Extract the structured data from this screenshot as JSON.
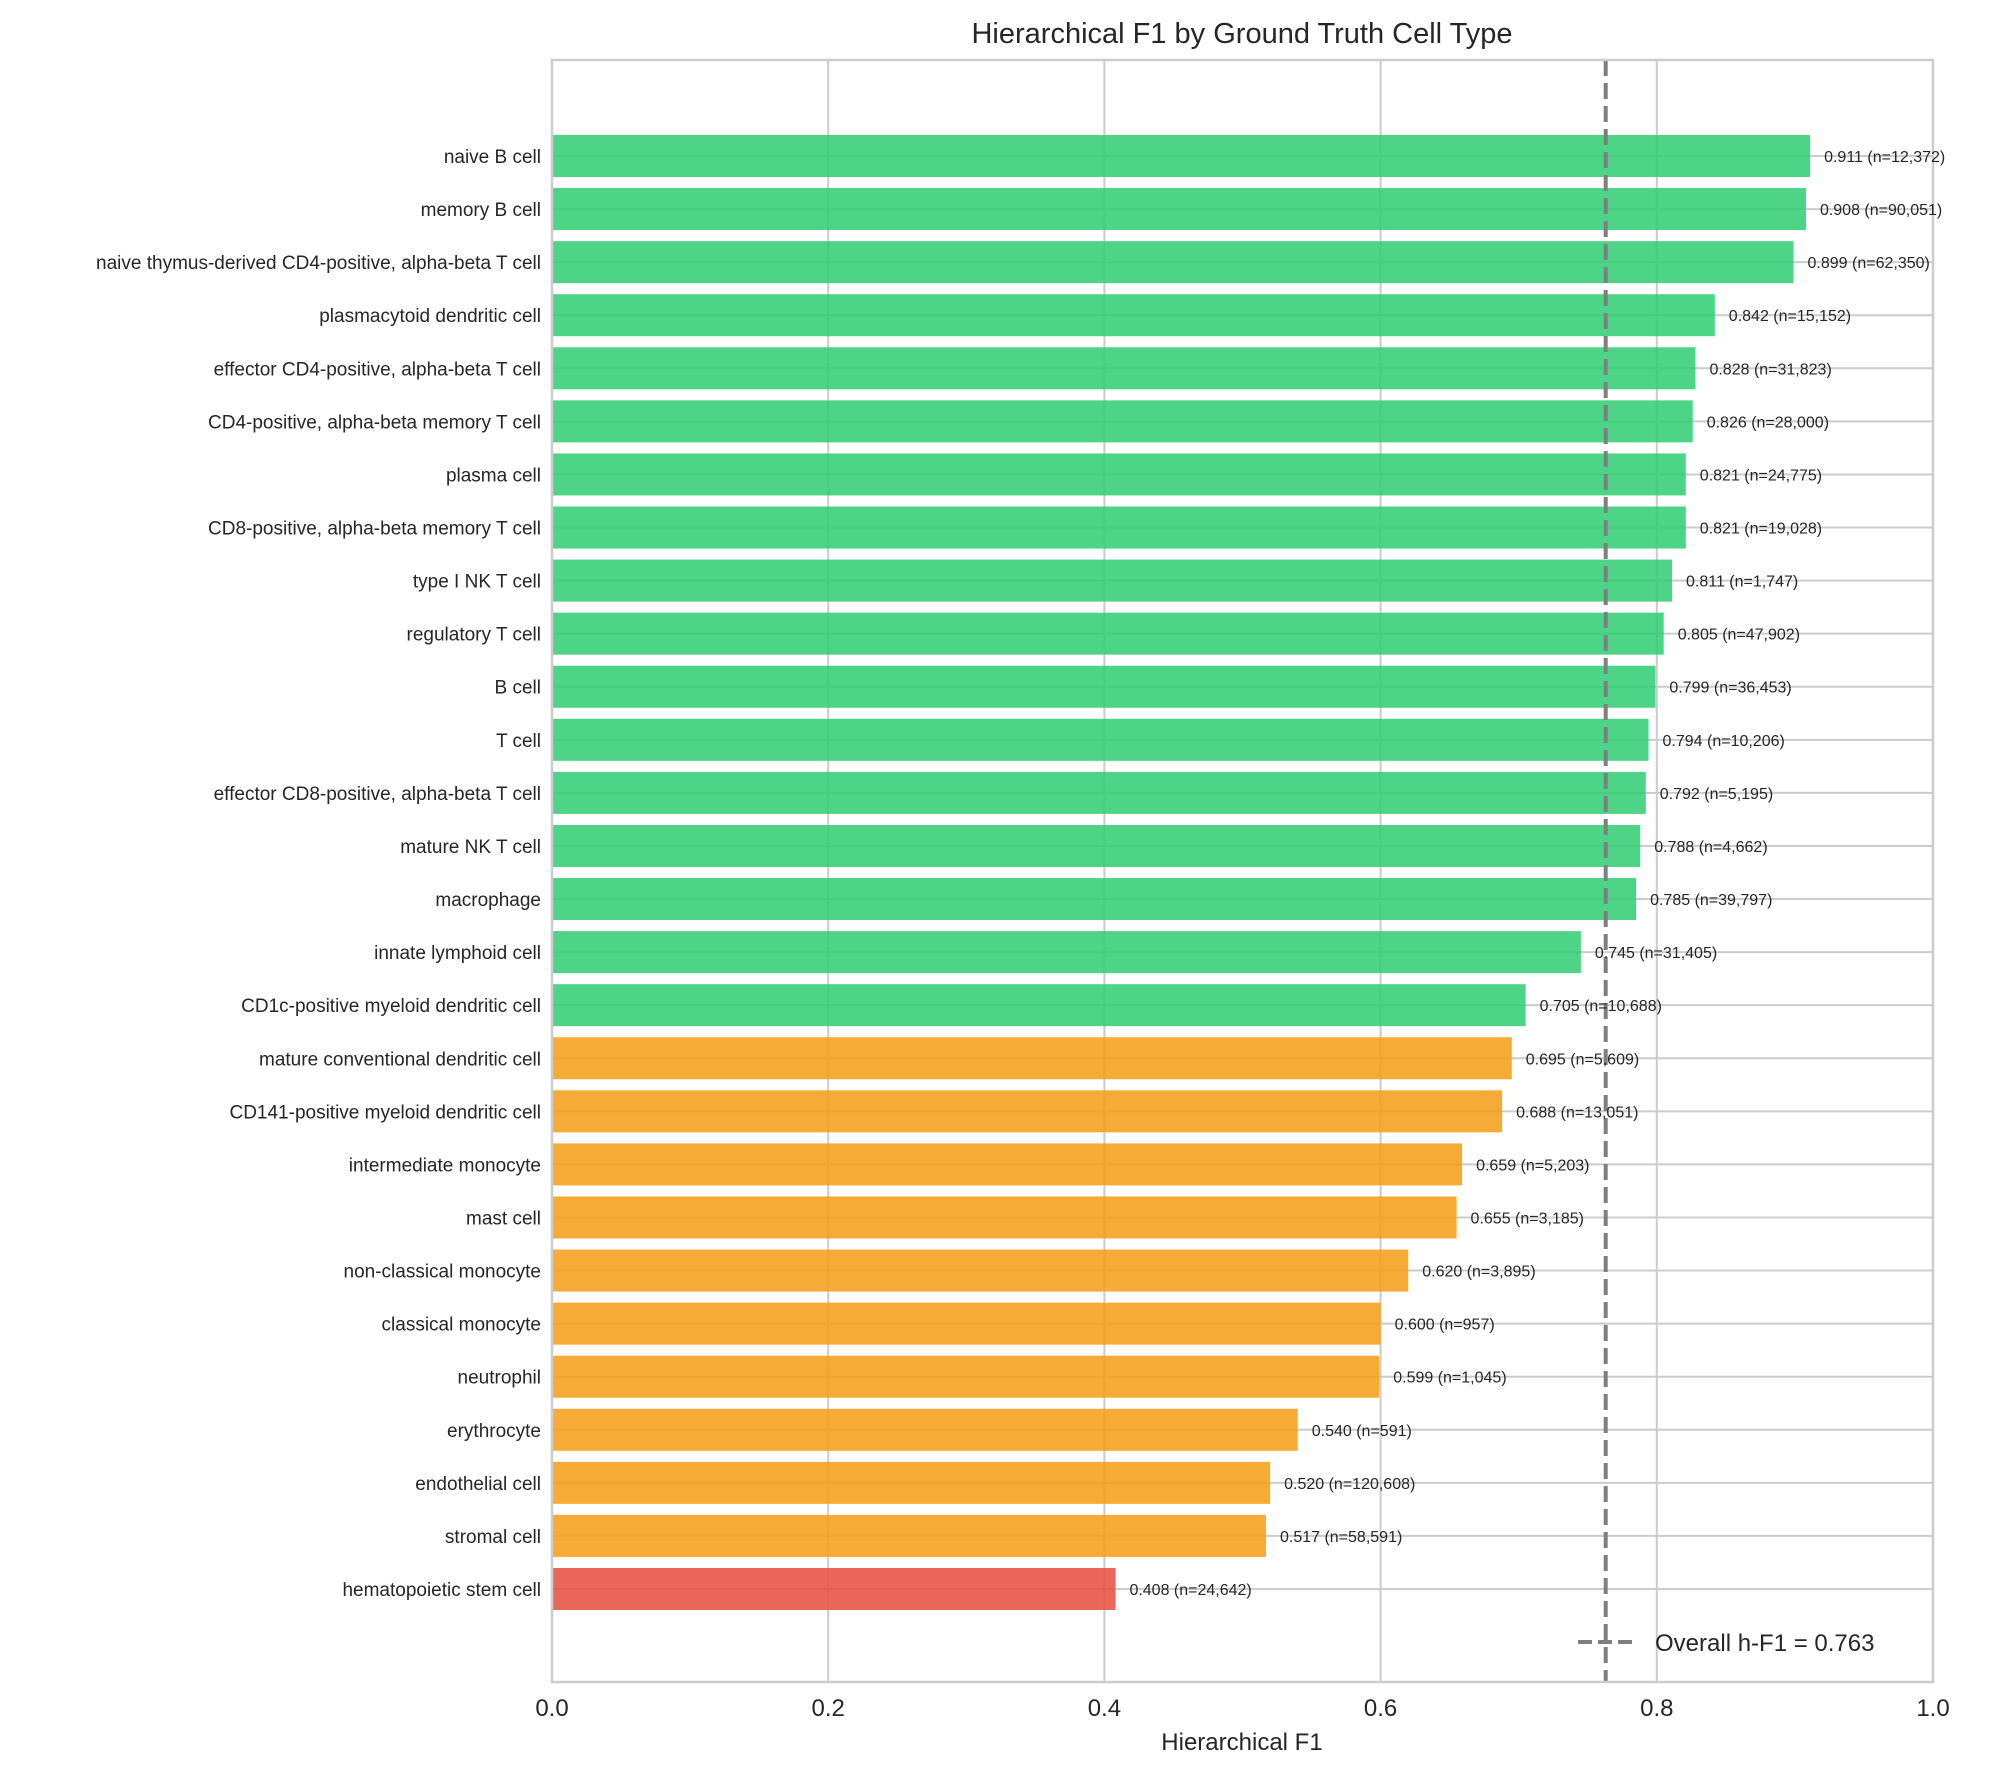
{
  "chart_data": {
    "type": "bar",
    "orientation": "horizontal",
    "title": "Hierarchical F1 by Ground Truth Cell Type",
    "xlabel": "Hierarchical F1",
    "ylabel": "",
    "xlim": [
      0.0,
      1.0
    ],
    "xticks": [
      "0.0",
      "0.2",
      "0.4",
      "0.6",
      "0.8",
      "1.0"
    ],
    "xtick_values": [
      0.0,
      0.2,
      0.4,
      0.6,
      0.8,
      1.0
    ],
    "grid": true,
    "categories": [
      "naive B cell",
      "memory B cell",
      "naive thymus-derived CD4-positive, alpha-beta T cell",
      "plasmacytoid dendritic cell",
      "effector CD4-positive, alpha-beta T cell",
      "CD4-positive, alpha-beta memory T cell",
      "plasma cell",
      "CD8-positive, alpha-beta memory T cell",
      "type I NK T cell",
      "regulatory T cell",
      "B cell",
      "T cell",
      "effector CD8-positive, alpha-beta T cell",
      "mature NK T cell",
      "macrophage",
      "innate lymphoid cell",
      "CD1c-positive myeloid dendritic cell",
      "mature conventional dendritic cell",
      "CD141-positive myeloid dendritic cell",
      "intermediate monocyte",
      "mast cell",
      "non-classical monocyte",
      "classical monocyte",
      "neutrophil",
      "erythrocyte",
      "endothelial cell",
      "stromal cell",
      "hematopoietic stem cell"
    ],
    "values": [
      0.911,
      0.908,
      0.899,
      0.842,
      0.828,
      0.826,
      0.821,
      0.821,
      0.811,
      0.805,
      0.799,
      0.794,
      0.792,
      0.788,
      0.785,
      0.745,
      0.705,
      0.695,
      0.688,
      0.659,
      0.655,
      0.62,
      0.6,
      0.599,
      0.54,
      0.52,
      0.517,
      0.408
    ],
    "bar_labels": [
      "0.911 (n=12,372)",
      "0.908 (n=90,051)",
      "0.899 (n=62,350)",
      "0.842 (n=15,152)",
      "0.828 (n=31,823)",
      "0.826 (n=28,000)",
      "0.821 (n=24,775)",
      "0.821 (n=19,028)",
      "0.811 (n=1,747)",
      "0.805 (n=47,902)",
      "0.799 (n=36,453)",
      "0.794 (n=10,206)",
      "0.792 (n=5,195)",
      "0.788 (n=4,662)",
      "0.785 (n=39,797)",
      "0.745 (n=31,405)",
      "0.705 (n=10,688)",
      "0.695 (n=5,609)",
      "0.688 (n=13,051)",
      "0.659 (n=5,203)",
      "0.655 (n=3,185)",
      "0.620 (n=3,895)",
      "0.600 (n=957)",
      "0.599 (n=1,045)",
      "0.540 (n=591)",
      "0.520 (n=120,608)",
      "0.517 (n=58,591)",
      "0.408 (n=24,642)"
    ],
    "counts": [
      12372,
      90051,
      62350,
      15152,
      31823,
      28000,
      24775,
      19028,
      1747,
      47902,
      36453,
      10206,
      5195,
      4662,
      39797,
      31405,
      10688,
      5609,
      13051,
      5203,
      3185,
      3895,
      957,
      1045,
      591,
      120608,
      58591,
      24642
    ],
    "color_thresholds": {
      "high": 0.7,
      "low": 0.5
    },
    "colors": {
      "high": "#2ecc71",
      "mid": "#f39c12",
      "low": "#e74c3c",
      "reference_line": "#7f7f7f",
      "grid": "#cccccc"
    },
    "reference_line": {
      "value": 0.763,
      "style": "dashed"
    },
    "legend": {
      "entries": [
        "Overall h-F1 = 0.763"
      ],
      "placement": "lower-right"
    }
  }
}
